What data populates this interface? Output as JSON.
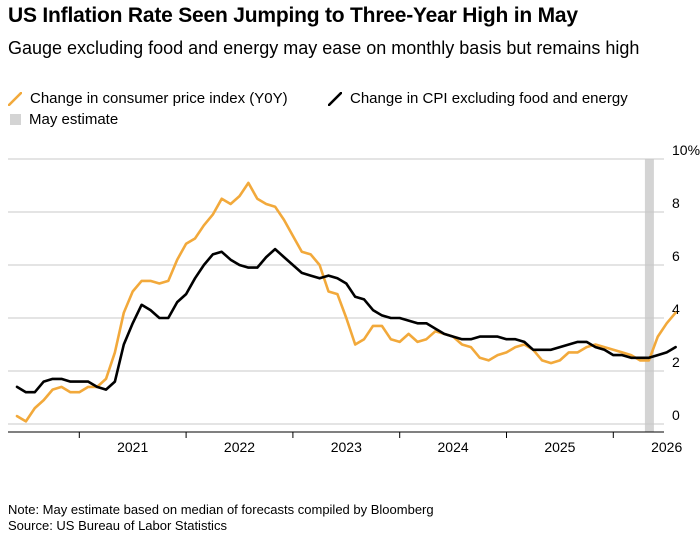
{
  "title": "US Inflation Rate Seen Jumping to Three-Year High in May",
  "subtitle": "Gauge excluding food and energy may ease on monthly basis but remains high",
  "legend": {
    "cpi": "Change in consumer price index (Y0Y)",
    "core": "Change in CPI excluding food and energy",
    "estimate": "May estimate"
  },
  "colors": {
    "cpi": "#f2a93b",
    "core": "#000000",
    "estimate": "#d4d4d4",
    "grid": "#c8c8c8"
  },
  "footer": {
    "note": "Note: May estimate based on median of forecasts compiled by Bloomberg",
    "source": "Source: US Bureau of Labor Statistics"
  },
  "chart_data": {
    "type": "line",
    "x_unit": "month",
    "x_start": "2020-06",
    "y_ticks": [
      "0",
      "2",
      "4",
      "6",
      "8",
      "10%"
    ],
    "ylim": [
      0,
      10
    ],
    "x_tick_labels": [
      "2021",
      "2022",
      "2023",
      "2024",
      "2025",
      "2026"
    ],
    "grid": true,
    "legend_position": "top",
    "estimate_month": "2026-05",
    "series": [
      {
        "name": "Change in consumer price index (Y0Y)",
        "key": "cpi",
        "values": [
          0.3,
          0.1,
          0.6,
          0.9,
          1.3,
          1.4,
          1.2,
          1.2,
          1.4,
          1.4,
          1.7,
          2.7,
          4.2,
          5.0,
          5.4,
          5.4,
          5.3,
          5.4,
          6.2,
          6.8,
          7.0,
          7.5,
          7.9,
          8.5,
          8.3,
          8.6,
          9.1,
          8.5,
          8.3,
          8.2,
          7.7,
          7.1,
          6.5,
          6.4,
          6.0,
          5.0,
          4.9,
          4.0,
          3.0,
          3.2,
          3.7,
          3.7,
          3.2,
          3.1,
          3.4,
          3.1,
          3.2,
          3.5,
          3.4,
          3.3,
          3.0,
          2.9,
          2.5,
          2.4,
          2.6,
          2.7,
          2.9,
          3.0,
          2.8,
          2.4,
          2.3,
          2.4,
          2.7,
          2.7,
          2.9,
          3.0,
          2.9,
          2.8,
          2.7,
          2.6,
          2.4,
          2.4,
          3.3,
          3.8,
          4.2
        ]
      },
      {
        "name": "Change in CPI excluding food and energy",
        "key": "core",
        "values": [
          1.4,
          1.2,
          1.2,
          1.6,
          1.7,
          1.7,
          1.6,
          1.6,
          1.6,
          1.4,
          1.3,
          1.6,
          3.0,
          3.8,
          4.5,
          4.3,
          4.0,
          4.0,
          4.6,
          4.9,
          5.5,
          6.0,
          6.4,
          6.5,
          6.2,
          6.0,
          5.9,
          5.9,
          6.3,
          6.6,
          6.3,
          6.0,
          5.7,
          5.6,
          5.5,
          5.6,
          5.5,
          5.3,
          4.8,
          4.7,
          4.3,
          4.1,
          4.0,
          4.0,
          3.9,
          3.8,
          3.8,
          3.6,
          3.4,
          3.3,
          3.2,
          3.2,
          3.3,
          3.3,
          3.3,
          3.2,
          3.2,
          3.1,
          2.8,
          2.8,
          2.8,
          2.9,
          3.0,
          3.1,
          3.1,
          2.9,
          2.8,
          2.6,
          2.6,
          2.5,
          2.5,
          2.5,
          2.6,
          2.7,
          2.9
        ]
      }
    ]
  }
}
